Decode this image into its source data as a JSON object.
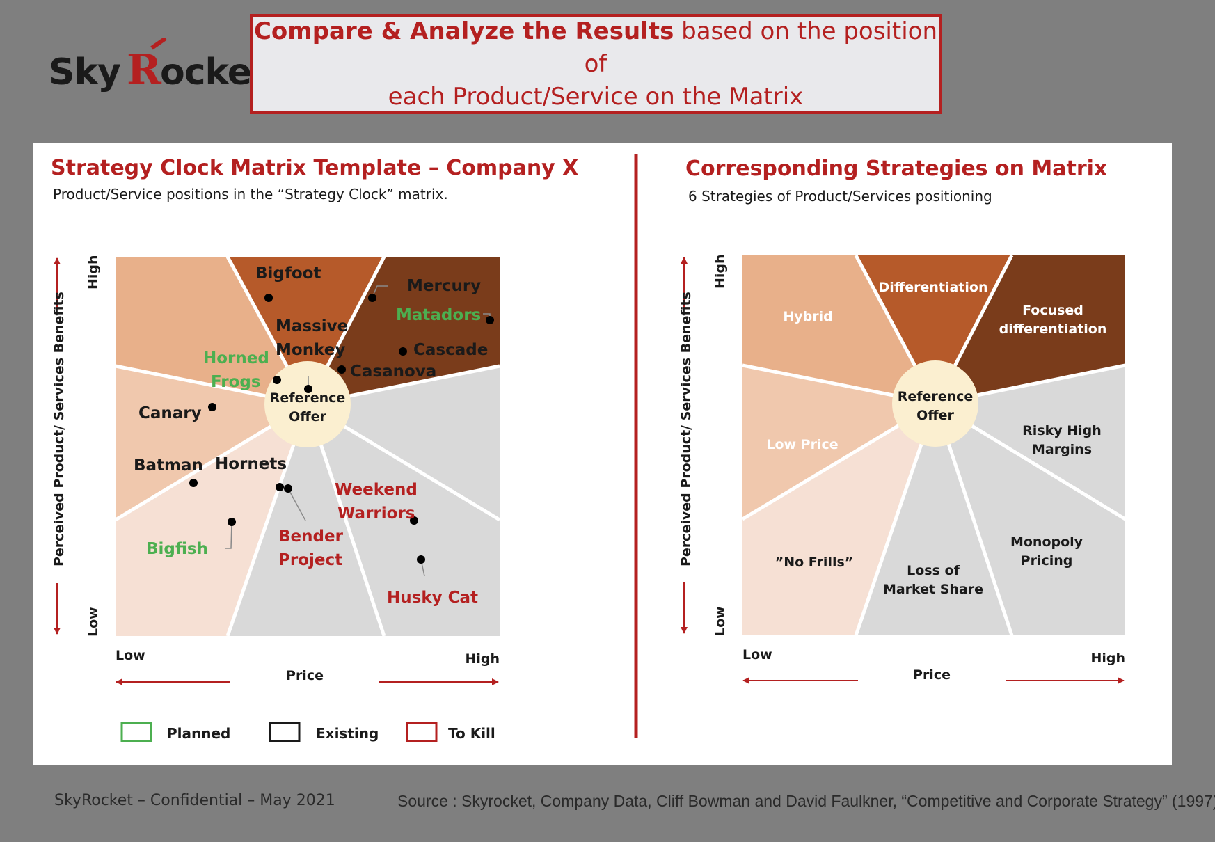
{
  "logo": {
    "text_a": "Sky",
    "text_b": "R",
    "text_c": "ocke"
  },
  "headline": {
    "bold": "Compare & Analyze the Results",
    "rest_line1": " based on the position of",
    "line2": "each Product/Service on the Matrix"
  },
  "left_panel": {
    "title": "Strategy Clock Matrix Template – Company X",
    "subtitle": "Product/Service positions in the “Strategy Clock” matrix.",
    "center_line1": "Reference",
    "center_line2": "Offer",
    "y_axis_label": "Perceived Product/ Services Benefits",
    "y_high": "High",
    "y_low": "Low",
    "x_axis_label": "Price",
    "x_low": "Low",
    "x_high": "High",
    "products": {
      "bigfoot": "Bigfoot",
      "mercury": "Mercury",
      "matadors": "Matadors",
      "massive_1": "Massive",
      "massive_2": "Monkey",
      "cascade": "Cascade",
      "horned_1": "Horned",
      "horned_2": "Frogs",
      "casanova": "Casanova",
      "canary": "Canary",
      "batman": "Batman",
      "hornets": "Hornets",
      "weekend_1": "Weekend",
      "weekend_2": "Warriors",
      "bigfish": "Bigfish",
      "bender_1": "Bender",
      "bender_2": "Project",
      "husky": "Husky Cat"
    },
    "legend": {
      "planned": "Planned",
      "existing": "Existing",
      "kill": "To Kill"
    }
  },
  "right_panel": {
    "title": "Corresponding Strategies on Matrix",
    "subtitle": "6 Strategies of Product/Services positioning",
    "center_line1": "Reference",
    "center_line2": "Offer",
    "y_axis_label": "Perceived Product/ Services Benefits",
    "y_high": "High",
    "y_low": "Low",
    "x_axis_label": "Price",
    "x_low": "Low",
    "x_high": "High",
    "strategies": {
      "hybrid": "Hybrid",
      "differentiation": "Differentiation",
      "focused_1": "Focused",
      "focused_2": "differentiation",
      "low_price": "Low Price",
      "risky_1": "Risky High",
      "risky_2": "Margins",
      "no_frills": "”No Frills”",
      "loss_1": "Loss of",
      "loss_2": "Market Share",
      "monopoly_1": "Monopoly",
      "monopoly_2": "Pricing"
    }
  },
  "footer": {
    "left": "SkyRocket – Confidential – May 2021",
    "right": "Source : Skyrocket, Company Data, Cliff Bowman and David Faulkner, “Competitive and Corporate Strategy” (1997)"
  },
  "colors": {
    "accent_red": "#b42020",
    "planned_green": "#4caf50",
    "hybrid": "#e8b08a",
    "differentiation": "#b65a2a",
    "focused_differentiation": "#7a3c1b",
    "low_price": "#f0c8ad",
    "no_frills": "#f6e0d4",
    "grey_zone": "#d9d9d9",
    "center": "#fbefd0"
  }
}
